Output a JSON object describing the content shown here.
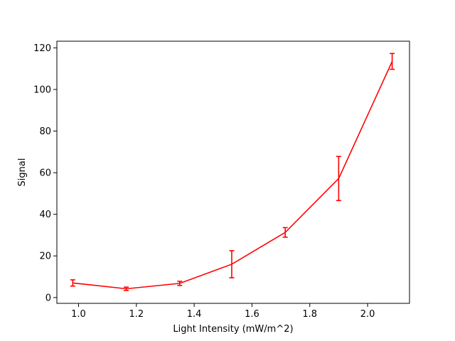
{
  "chart_data": {
    "type": "line",
    "title": "",
    "xlabel": "Light Intensity (mW/m^2)",
    "ylabel": "Signal",
    "xlim": [
      0.925,
      2.145
    ],
    "ylim": [
      -2.8,
      123.2
    ],
    "x_ticks": [
      "1.0",
      "1.2",
      "1.4",
      "1.6",
      "1.8",
      "2.0"
    ],
    "x_tick_values": [
      1.0,
      1.2,
      1.4,
      1.6,
      1.8,
      2.0
    ],
    "y_ticks": [
      "0",
      "20",
      "40",
      "60",
      "80",
      "100",
      "120"
    ],
    "y_tick_values": [
      0,
      20,
      40,
      60,
      80,
      100,
      120
    ],
    "grid": false,
    "legend": "none",
    "series": [
      {
        "color": "#ff0000",
        "x": [
          0.98,
          1.165,
          1.35,
          1.53,
          1.715,
          1.9,
          2.085
        ],
        "y": [
          7.0,
          4.2,
          6.8,
          16.0,
          31.3,
          57.2,
          113.5
        ],
        "error": [
          1.5,
          0.8,
          1.0,
          6.5,
          2.3,
          10.6,
          3.8
        ]
      }
    ]
  }
}
